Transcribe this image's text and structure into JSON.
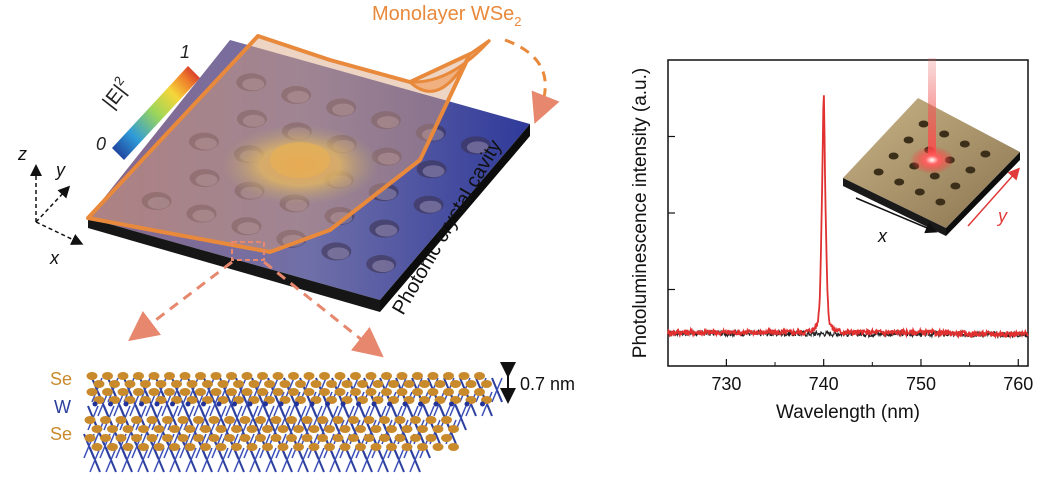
{
  "left_panel": {
    "monolayer_label": "Monolayer WSe",
    "monolayer_sub": "2",
    "cavity_label": "Photonic crystal cavity",
    "colorbar": {
      "max": "1",
      "min": "0",
      "label": "|E|",
      "label_sup": "2"
    },
    "axes": {
      "z": "z",
      "y": "y",
      "x": "x"
    },
    "layers": {
      "top": "Se",
      "middle": "W",
      "bottom": "Se"
    },
    "thickness": "0.7 nm",
    "colors": {
      "outline": "#e8893c",
      "arrow": "#e6876e",
      "se": "#c98a2c",
      "w": "#2c3f9e"
    }
  },
  "right_panel": {
    "inset": {
      "x_label": "x",
      "y_label": "y"
    }
  },
  "chart_data": {
    "type": "line",
    "xlabel": "Wavelength (nm)",
    "ylabel": "Photoluminescence intensity (a.u.)",
    "xlim": [
      724,
      761
    ],
    "ylim": [
      0,
      1
    ],
    "xticks": [
      730,
      740,
      750,
      760
    ],
    "series": [
      {
        "color": "#e03030",
        "x": [
          724,
          730,
          736,
          738,
          739,
          739.4,
          739.6,
          739.8,
          740,
          740.2,
          740.4,
          740.6,
          741,
          742,
          745,
          750,
          755,
          761
        ],
        "y": [
          0.11,
          0.11,
          0.11,
          0.11,
          0.12,
          0.14,
          0.22,
          0.5,
          0.93,
          0.5,
          0.22,
          0.14,
          0.12,
          0.11,
          0.11,
          0.11,
          0.105,
          0.105
        ]
      },
      {
        "color": "#222222",
        "x": [
          724,
          730,
          736,
          740,
          745,
          750,
          755,
          761
        ],
        "y": [
          0.108,
          0.107,
          0.106,
          0.106,
          0.105,
          0.105,
          0.104,
          0.103
        ]
      }
    ]
  }
}
